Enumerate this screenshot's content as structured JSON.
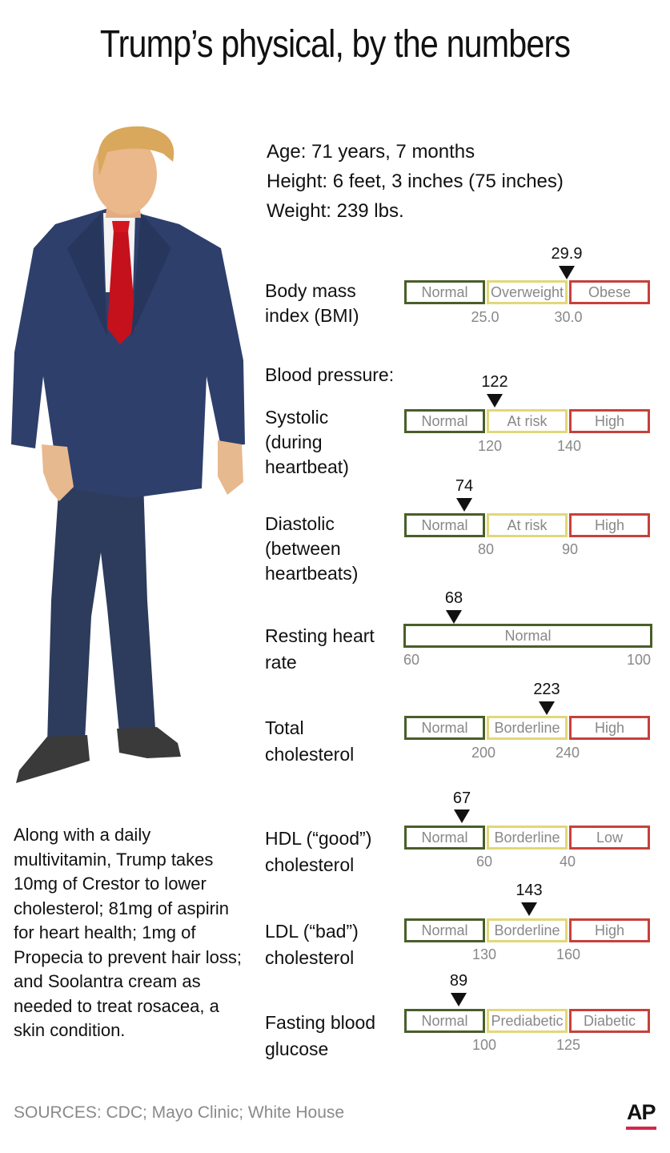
{
  "title": "Trump’s physical, by the numbers",
  "stats": {
    "age": "Age: 71 years, 7 months",
    "height": "Height: 6 feet, 3 inches (75 inches)",
    "weight": "Weight: 239 lbs."
  },
  "blood_pressure_heading": "Blood pressure:",
  "metrics": {
    "bmi": {
      "label_1": "Body mass",
      "label_2": "index (BMI)",
      "value": "29.9",
      "segments": [
        "Normal",
        "Overweight",
        "Obese"
      ],
      "ticks": [
        "25.0",
        "30.0"
      ]
    },
    "systolic": {
      "label_1": "Systolic",
      "label_2": "(during",
      "label_3": "heartbeat)",
      "value": "122",
      "segments": [
        "Normal",
        "At risk",
        "High"
      ],
      "ticks": [
        "120",
        "140"
      ]
    },
    "diastolic": {
      "label_1": "Diastolic",
      "label_2": "(between",
      "label_3": "heartbeats)",
      "value": "74",
      "segments": [
        "Normal",
        "At risk",
        "High"
      ],
      "ticks": [
        "80",
        "90"
      ]
    },
    "heart_rate": {
      "label_1": "Resting heart",
      "label_2": "rate",
      "value": "68",
      "segments": [
        "Normal"
      ],
      "ticks": [
        "60",
        "100"
      ]
    },
    "total_chol": {
      "label_1": "Total",
      "label_2": "cholesterol",
      "value": "223",
      "segments": [
        "Normal",
        "Borderline",
        "High"
      ],
      "ticks": [
        "200",
        "240"
      ]
    },
    "hdl": {
      "label_1": "HDL (“good”)",
      "label_2": "cholesterol",
      "value": "67",
      "segments": [
        "Normal",
        "Borderline",
        "Low"
      ],
      "ticks": [
        "60",
        "40"
      ]
    },
    "ldl": {
      "label_1": "LDL (“bad”)",
      "label_2": "cholesterol",
      "value": "143",
      "segments": [
        "Normal",
        "Borderline",
        "High"
      ],
      "ticks": [
        "130",
        "160"
      ]
    },
    "glucose": {
      "label_1": "Fasting blood",
      "label_2": "glucose",
      "value": "89",
      "segments": [
        "Normal",
        "Prediabetic",
        "Diabetic"
      ],
      "ticks": [
        "100",
        "125"
      ]
    }
  },
  "notes": "Along with a daily multivitamin, Trump takes 10mg of Crestor to lower cholesterol; 81mg of aspirin for heart health; 1mg of Propecia to prevent hair loss; and Soolantra cream as needed to treat rosacea, a skin condition.",
  "sources": "SOURCES: CDC; Mayo Clinic; White House",
  "logo": "AP",
  "colors": {
    "normal": "#4a5e2a",
    "caution": "#e2d77a",
    "danger": "#c6413a",
    "accent": "#d2284a"
  }
}
